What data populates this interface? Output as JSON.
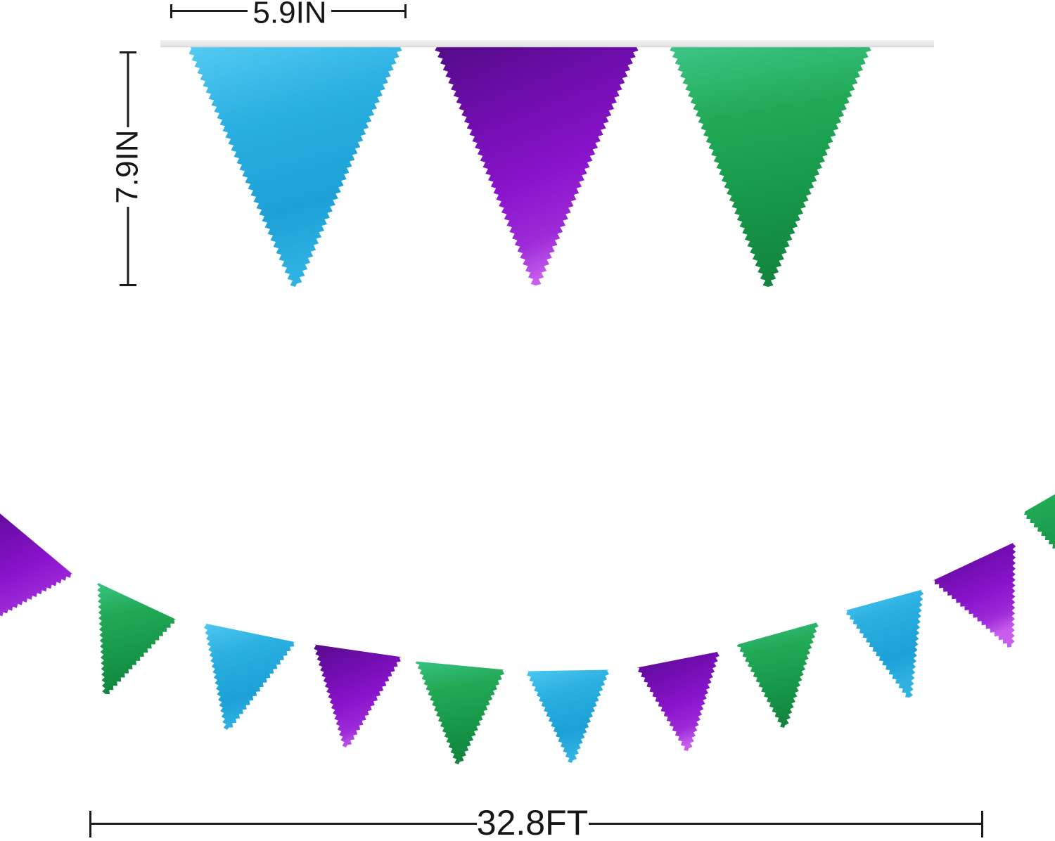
{
  "dimensions": {
    "flag_width": "5.9IN",
    "flag_height": "7.9IN",
    "total_length": "32.8FT"
  },
  "palette": {
    "blue": "#29ade0",
    "purple": "#8a14cc",
    "green": "#1fa955",
    "ribbon_gray": "#e9e9e9",
    "string_white": "#ffffff",
    "dimension_line": "#1b1b1b",
    "background": "#ffffff"
  },
  "large_flags": [
    {
      "color": "blue"
    },
    {
      "color": "purple"
    },
    {
      "color": "green"
    }
  ],
  "garland_flags": [
    {
      "color": "purple"
    },
    {
      "color": "green"
    },
    {
      "color": "blue"
    },
    {
      "color": "purple"
    },
    {
      "color": "green"
    },
    {
      "color": "blue"
    },
    {
      "color": "purple"
    },
    {
      "color": "green"
    },
    {
      "color": "blue"
    },
    {
      "color": "purple"
    },
    {
      "color": "green"
    }
  ]
}
